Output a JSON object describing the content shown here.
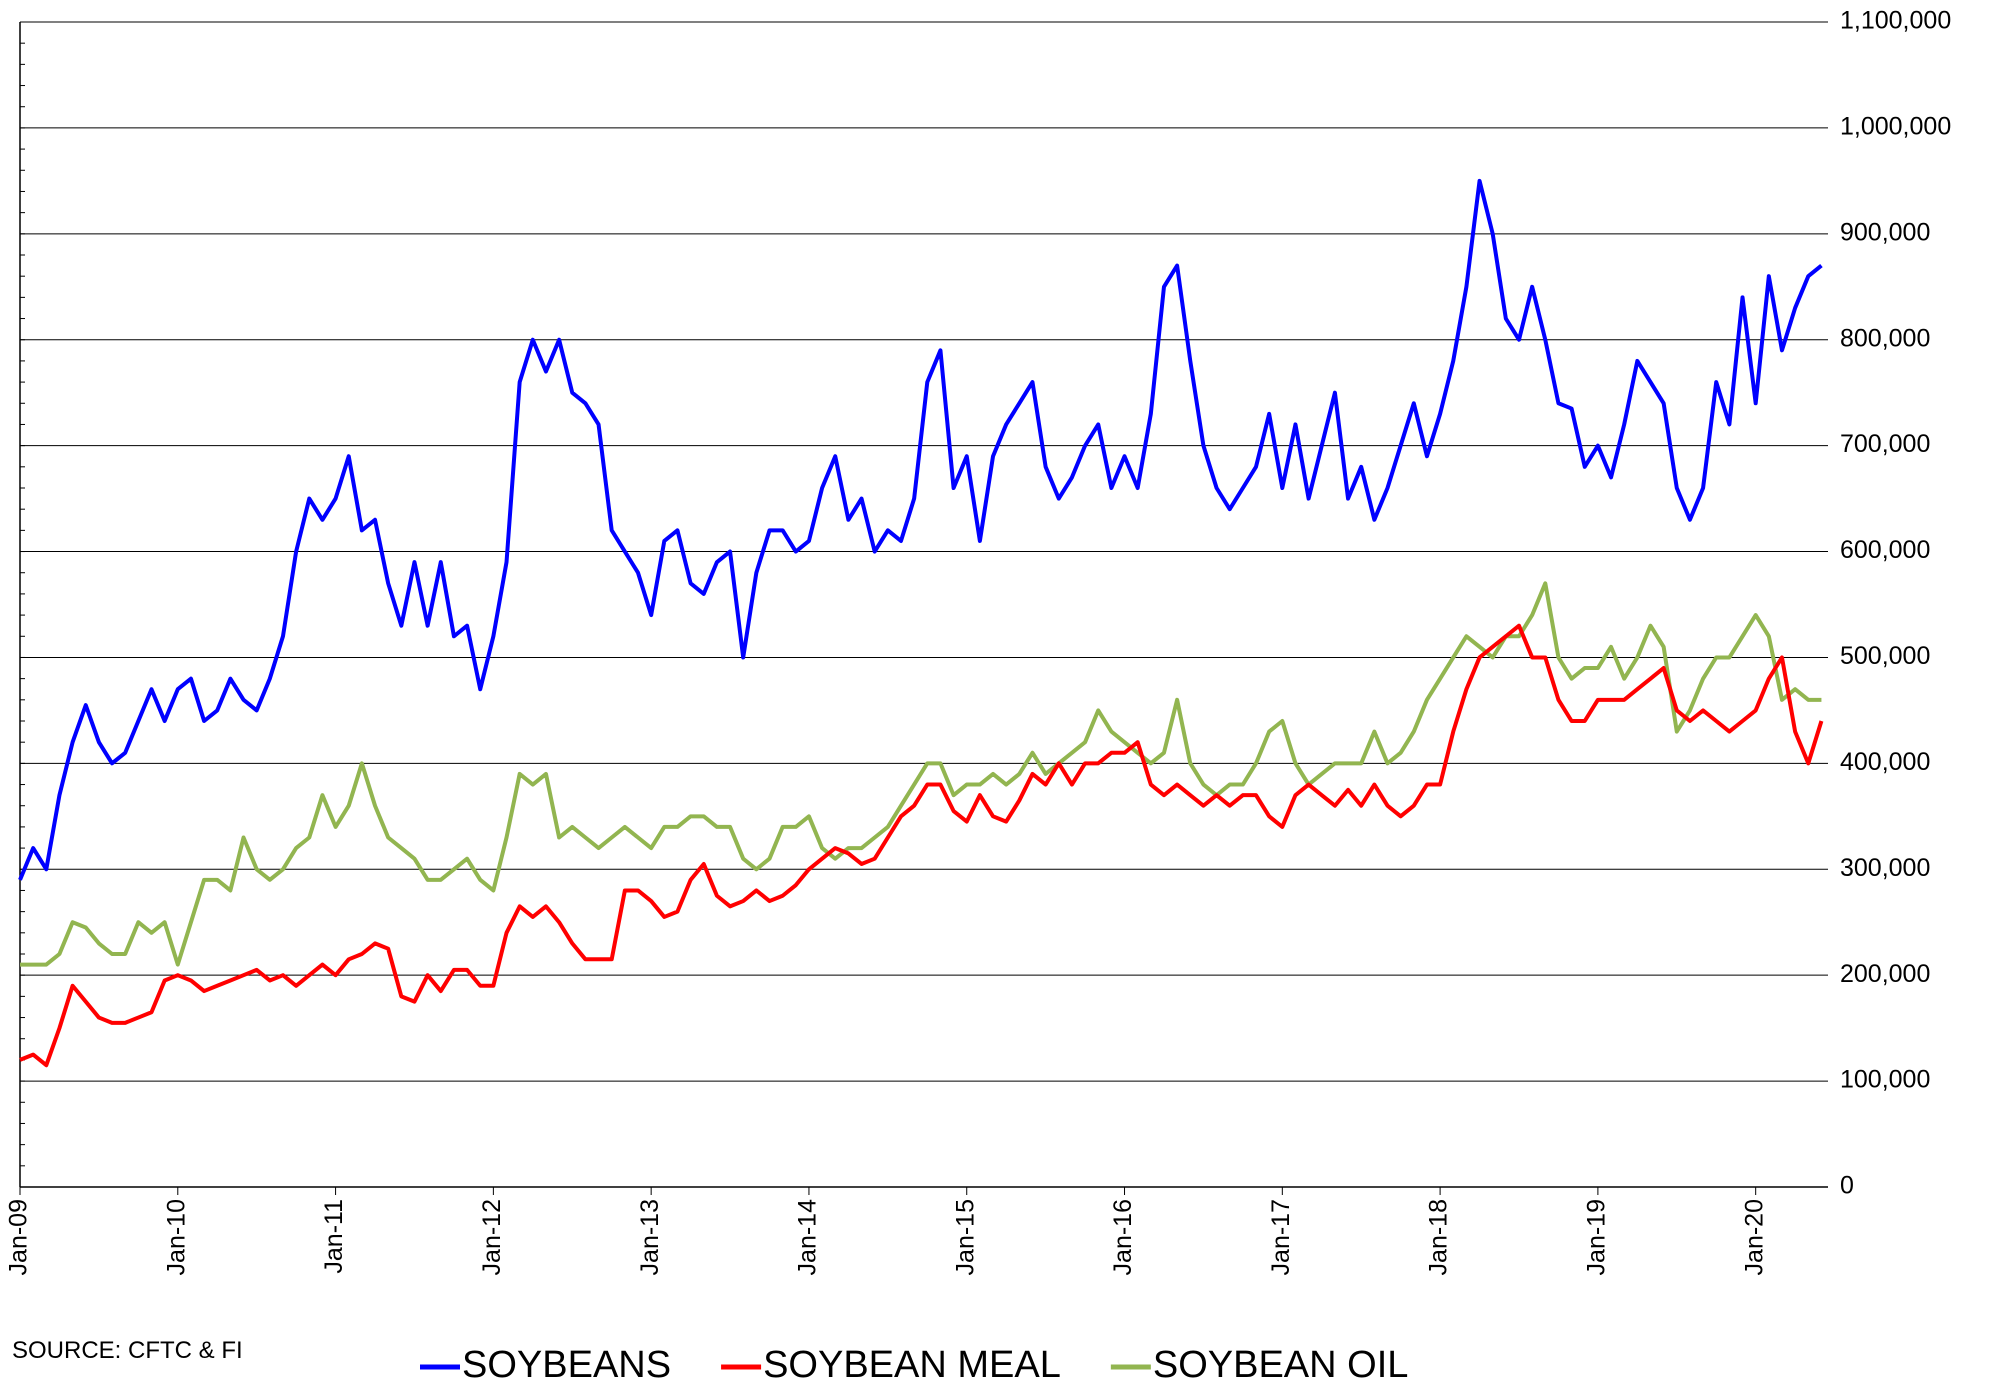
{
  "chart_data": {
    "type": "line",
    "source": "SOURCE: CFTC & FI",
    "x": [
      "2009-01",
      "2009-02",
      "2009-03",
      "2009-04",
      "2009-05",
      "2009-06",
      "2009-07",
      "2009-08",
      "2009-09",
      "2009-10",
      "2009-11",
      "2009-12",
      "2010-01",
      "2010-02",
      "2010-03",
      "2010-04",
      "2010-05",
      "2010-06",
      "2010-07",
      "2010-08",
      "2010-09",
      "2010-10",
      "2010-11",
      "2010-12",
      "2011-01",
      "2011-02",
      "2011-03",
      "2011-04",
      "2011-05",
      "2011-06",
      "2011-07",
      "2011-08",
      "2011-09",
      "2011-10",
      "2011-11",
      "2011-12",
      "2012-01",
      "2012-02",
      "2012-03",
      "2012-04",
      "2012-05",
      "2012-06",
      "2012-07",
      "2012-08",
      "2012-09",
      "2012-10",
      "2012-11",
      "2012-12",
      "2013-01",
      "2013-02",
      "2013-03",
      "2013-04",
      "2013-05",
      "2013-06",
      "2013-07",
      "2013-08",
      "2013-09",
      "2013-10",
      "2013-11",
      "2013-12",
      "2014-01",
      "2014-02",
      "2014-03",
      "2014-04",
      "2014-05",
      "2014-06",
      "2014-07",
      "2014-08",
      "2014-09",
      "2014-10",
      "2014-11",
      "2014-12",
      "2015-01",
      "2015-02",
      "2015-03",
      "2015-04",
      "2015-05",
      "2015-06",
      "2015-07",
      "2015-08",
      "2015-09",
      "2015-10",
      "2015-11",
      "2015-12",
      "2016-01",
      "2016-02",
      "2016-03",
      "2016-04",
      "2016-05",
      "2016-06",
      "2016-07",
      "2016-08",
      "2016-09",
      "2016-10",
      "2016-11",
      "2016-12",
      "2017-01",
      "2017-02",
      "2017-03",
      "2017-04",
      "2017-05",
      "2017-06",
      "2017-07",
      "2017-08",
      "2017-09",
      "2017-10",
      "2017-11",
      "2017-12",
      "2018-01",
      "2018-02",
      "2018-03",
      "2018-04",
      "2018-05",
      "2018-06",
      "2018-07",
      "2018-08",
      "2018-09",
      "2018-10",
      "2018-11",
      "2018-12",
      "2019-01",
      "2019-02",
      "2019-03",
      "2019-04",
      "2019-05",
      "2019-06",
      "2019-07",
      "2019-08",
      "2019-09",
      "2019-10",
      "2019-11",
      "2019-12",
      "2020-01",
      "2020-02",
      "2020-03",
      "2020-04",
      "2020-05",
      "2020-06"
    ],
    "xlim": [
      "2009-01",
      "2020-06"
    ],
    "xticks": [
      {
        "value": "2009-01",
        "label": "Jan-09"
      },
      {
        "value": "2010-01",
        "label": "Jan-10"
      },
      {
        "value": "2011-01",
        "label": "Jan-11"
      },
      {
        "value": "2012-01",
        "label": "Jan-12"
      },
      {
        "value": "2013-01",
        "label": "Jan-13"
      },
      {
        "value": "2014-01",
        "label": "Jan-14"
      },
      {
        "value": "2015-01",
        "label": "Jan-15"
      },
      {
        "value": "2016-01",
        "label": "Jan-16"
      },
      {
        "value": "2017-01",
        "label": "Jan-17"
      },
      {
        "value": "2018-01",
        "label": "Jan-18"
      },
      {
        "value": "2019-01",
        "label": "Jan-19"
      },
      {
        "value": "2020-01",
        "label": "Jan-20"
      }
    ],
    "ylim": [
      0,
      1100000
    ],
    "yticks": [
      0,
      {
        "value": 100000,
        "label": "100,000"
      },
      {
        "value": 200000,
        "label": "200,000"
      },
      {
        "value": 300000,
        "label": "300,000"
      },
      {
        "value": 400000,
        "label": "400,000"
      },
      {
        "value": 500000,
        "label": "500,000"
      },
      {
        "value": 600000,
        "label": "600,000"
      },
      {
        "value": 700000,
        "label": "700,000"
      },
      {
        "value": 800000,
        "label": "800,000"
      },
      {
        "value": 900000,
        "label": "900,000"
      },
      {
        "value": 1000000,
        "label": "1,000,000"
      },
      {
        "value": 1100000,
        "label": "1,100,000"
      }
    ],
    "y_axis_position": "right",
    "grid": true,
    "legend_position": "bottom",
    "series": [
      {
        "name": "SOYBEANS",
        "color": "#0000ff",
        "values": [
          290000,
          320000,
          300000,
          370000,
          420000,
          455000,
          420000,
          400000,
          410000,
          440000,
          470000,
          440000,
          470000,
          480000,
          440000,
          450000,
          480000,
          460000,
          450000,
          480000,
          520000,
          600000,
          650000,
          630000,
          650000,
          690000,
          620000,
          630000,
          570000,
          530000,
          590000,
          530000,
          590000,
          520000,
          530000,
          470000,
          520000,
          590000,
          760000,
          800000,
          770000,
          800000,
          750000,
          740000,
          720000,
          620000,
          600000,
          580000,
          540000,
          610000,
          620000,
          570000,
          560000,
          590000,
          600000,
          500000,
          580000,
          620000,
          620000,
          600000,
          610000,
          660000,
          690000,
          630000,
          650000,
          600000,
          620000,
          610000,
          650000,
          760000,
          790000,
          660000,
          690000,
          610000,
          690000,
          720000,
          740000,
          760000,
          680000,
          650000,
          670000,
          700000,
          720000,
          660000,
          690000,
          660000,
          730000,
          850000,
          870000,
          780000,
          700000,
          660000,
          640000,
          660000,
          680000,
          730000,
          660000,
          720000,
          650000,
          700000,
          750000,
          650000,
          680000,
          630000,
          660000,
          700000,
          740000,
          690000,
          730000,
          780000,
          850000,
          950000,
          900000,
          820000,
          800000,
          850000,
          800000,
          740000,
          735000,
          680000,
          700000,
          670000,
          720000,
          780000,
          760000,
          740000,
          660000,
          630000,
          660000,
          760000,
          720000,
          840000,
          740000,
          860000,
          790000,
          830000,
          860000,
          870000
        ]
      },
      {
        "name": "SOYBEAN MEAL",
        "color": "#ff0000",
        "values": [
          120000,
          125000,
          115000,
          150000,
          190000,
          175000,
          160000,
          155000,
          155000,
          160000,
          165000,
          195000,
          200000,
          195000,
          185000,
          190000,
          195000,
          200000,
          205000,
          195000,
          200000,
          190000,
          200000,
          210000,
          200000,
          215000,
          220000,
          230000,
          225000,
          180000,
          175000,
          200000,
          185000,
          205000,
          205000,
          190000,
          190000,
          240000,
          265000,
          255000,
          265000,
          250000,
          230000,
          215000,
          215000,
          215000,
          280000,
          280000,
          270000,
          255000,
          260000,
          290000,
          305000,
          275000,
          265000,
          270000,
          280000,
          270000,
          275000,
          285000,
          300000,
          310000,
          320000,
          315000,
          305000,
          310000,
          330000,
          350000,
          360000,
          380000,
          380000,
          355000,
          345000,
          370000,
          350000,
          345000,
          365000,
          390000,
          380000,
          400000,
          380000,
          400000,
          400000,
          410000,
          410000,
          420000,
          380000,
          370000,
          380000,
          370000,
          360000,
          370000,
          360000,
          370000,
          370000,
          350000,
          340000,
          370000,
          380000,
          370000,
          360000,
          375000,
          360000,
          380000,
          360000,
          350000,
          360000,
          380000,
          380000,
          430000,
          470000,
          500000,
          510000,
          520000,
          530000,
          500000,
          500000,
          460000,
          440000,
          440000,
          460000,
          460000,
          460000,
          470000,
          480000,
          490000,
          450000,
          440000,
          450000,
          440000,
          430000,
          440000,
          450000,
          480000,
          500000,
          430000,
          400000,
          440000
        ]
      },
      {
        "name": "SOYBEAN OIL",
        "color": "#92b550",
        "values": [
          210000,
          210000,
          210000,
          220000,
          250000,
          245000,
          230000,
          220000,
          220000,
          250000,
          240000,
          250000,
          210000,
          250000,
          290000,
          290000,
          280000,
          330000,
          300000,
          290000,
          300000,
          320000,
          330000,
          370000,
          340000,
          360000,
          400000,
          360000,
          330000,
          320000,
          310000,
          290000,
          290000,
          300000,
          310000,
          290000,
          280000,
          330000,
          390000,
          380000,
          390000,
          330000,
          340000,
          330000,
          320000,
          330000,
          340000,
          330000,
          320000,
          340000,
          340000,
          350000,
          350000,
          340000,
          340000,
          310000,
          300000,
          310000,
          340000,
          340000,
          350000,
          320000,
          310000,
          320000,
          320000,
          330000,
          340000,
          360000,
          380000,
          400000,
          400000,
          370000,
          380000,
          380000,
          390000,
          380000,
          390000,
          410000,
          390000,
          400000,
          410000,
          420000,
          450000,
          430000,
          420000,
          410000,
          400000,
          410000,
          460000,
          400000,
          380000,
          370000,
          380000,
          380000,
          400000,
          430000,
          440000,
          400000,
          380000,
          390000,
          400000,
          400000,
          400000,
          430000,
          400000,
          410000,
          430000,
          460000,
          480000,
          500000,
          520000,
          510000,
          500000,
          520000,
          520000,
          540000,
          570000,
          500000,
          480000,
          490000,
          490000,
          510000,
          480000,
          500000,
          530000,
          510000,
          430000,
          450000,
          480000,
          500000,
          500000,
          520000,
          540000,
          520000,
          460000,
          470000,
          460000,
          460000
        ]
      }
    ]
  }
}
